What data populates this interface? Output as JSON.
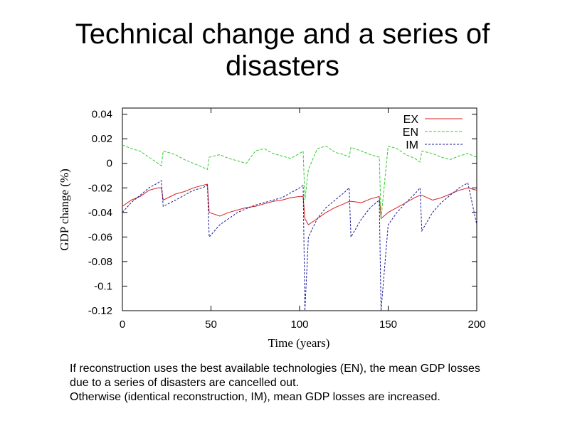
{
  "slide": {
    "title": "Technical change and a series of\ndisasters",
    "caption_lines": [
      "If reconstruction uses the best available technologies (EN), the mean GDP losses",
      "due to a series of disasters are cancelled out.",
      "Otherwise (identical reconstruction, IM), mean GDP losses are increased."
    ]
  },
  "chart_data": {
    "type": "line",
    "xlabel": "Time (years)",
    "ylabel": "GDP change (%)",
    "xlim": [
      0,
      200
    ],
    "ylim": [
      -0.12,
      0.045
    ],
    "xticks": [
      0,
      50,
      100,
      150,
      200
    ],
    "yticks": [
      0.04,
      0.02,
      0,
      -0.02,
      -0.04,
      -0.06,
      -0.08,
      -0.1,
      -0.12
    ],
    "ytick_labels": [
      "0.04",
      "0.02",
      "0",
      "-0.02",
      "-0.04",
      "-0.06",
      "-0.08",
      "-0.1",
      "-0.12"
    ],
    "grid": false,
    "legend": "top-right",
    "x": [
      0,
      5,
      10,
      15,
      20,
      22,
      23,
      30,
      35,
      40,
      45,
      48,
      49,
      55,
      60,
      65,
      70,
      75,
      80,
      85,
      90,
      95,
      100,
      102,
      103,
      105,
      110,
      115,
      120,
      125,
      128,
      129,
      135,
      140,
      145,
      146,
      150,
      155,
      160,
      165,
      168,
      169,
      175,
      180,
      185,
      190,
      195,
      200
    ],
    "series": [
      {
        "name": "EX",
        "color": "#d42020",
        "dash": "",
        "values": [
          -0.035,
          -0.03,
          -0.027,
          -0.022,
          -0.02,
          -0.02,
          -0.03,
          -0.025,
          -0.023,
          -0.02,
          -0.018,
          -0.017,
          -0.04,
          -0.043,
          -0.04,
          -0.038,
          -0.036,
          -0.035,
          -0.033,
          -0.031,
          -0.03,
          -0.028,
          -0.027,
          -0.027,
          -0.045,
          -0.05,
          -0.045,
          -0.04,
          -0.036,
          -0.033,
          -0.031,
          -0.031,
          -0.032,
          -0.029,
          -0.027,
          -0.045,
          -0.04,
          -0.036,
          -0.032,
          -0.028,
          -0.026,
          -0.026,
          -0.03,
          -0.028,
          -0.025,
          -0.022,
          -0.02,
          -0.022
        ]
      },
      {
        "name": "EN",
        "color": "#33cc33",
        "dash": "4 2",
        "values": [
          0.015,
          0.012,
          0.01,
          0.005,
          0.0,
          -0.002,
          0.01,
          0.007,
          0.003,
          0.0,
          -0.003,
          -0.005,
          0.005,
          0.007,
          0.004,
          0.002,
          0.0,
          0.01,
          0.012,
          0.008,
          0.006,
          0.004,
          0.008,
          0.01,
          -0.03,
          -0.005,
          0.012,
          0.014,
          0.009,
          0.007,
          0.005,
          0.013,
          0.01,
          0.007,
          0.005,
          -0.045,
          0.014,
          0.012,
          0.007,
          0.004,
          0.001,
          0.01,
          0.008,
          0.005,
          0.003,
          0.006,
          0.008,
          0.005
        ]
      },
      {
        "name": "IM",
        "color": "#1a1a99",
        "dash": "3 2",
        "values": [
          -0.04,
          -0.032,
          -0.026,
          -0.02,
          -0.016,
          -0.014,
          -0.035,
          -0.03,
          -0.026,
          -0.022,
          -0.02,
          -0.018,
          -0.06,
          -0.05,
          -0.045,
          -0.04,
          -0.037,
          -0.034,
          -0.032,
          -0.03,
          -0.028,
          -0.024,
          -0.02,
          -0.018,
          -0.12,
          -0.06,
          -0.045,
          -0.036,
          -0.03,
          -0.024,
          -0.02,
          -0.06,
          -0.045,
          -0.036,
          -0.03,
          -0.12,
          -0.05,
          -0.04,
          -0.032,
          -0.025,
          -0.02,
          -0.055,
          -0.04,
          -0.032,
          -0.026,
          -0.02,
          -0.016,
          -0.05
        ]
      }
    ]
  }
}
